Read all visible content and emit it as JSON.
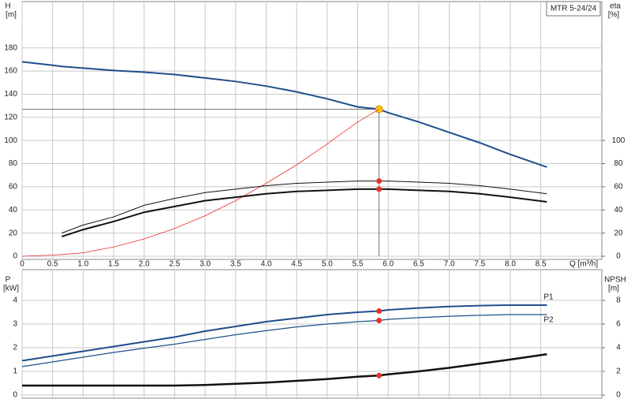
{
  "chart_data": [
    {
      "type": "line",
      "annotation": "MTR 5-24/24",
      "ylabel": "H",
      "yunit": "[m]",
      "y2label": "eta",
      "y2unit": "[%]",
      "xlabel": "Q [m³/h]",
      "xlim": [
        0,
        9.5
      ],
      "ylim": [
        0,
        220
      ],
      "y2lim": [
        0,
        220
      ],
      "xticks": [
        0,
        0.5,
        {
          "value": 1,
          "label": "1.0"
        },
        1.5,
        {
          "value": 2,
          "label": "2.0"
        },
        2.5,
        {
          "value": 3,
          "label": "3.0"
        },
        3.5,
        {
          "value": 4,
          "label": "4.0"
        },
        4.5,
        {
          "value": 5,
          "label": "5.0"
        },
        5.5,
        {
          "value": 6,
          "label": "6.0"
        },
        6.5,
        {
          "value": 7,
          "label": "7.0"
        },
        7.5,
        {
          "value": 8,
          "label": "8.0"
        },
        8.5
      ],
      "yticks": [
        0,
        20,
        40,
        60,
        80,
        100,
        120,
        140,
        160,
        180
      ],
      "y2ticks": [
        0,
        20,
        40,
        60,
        80,
        100
      ],
      "grid": true,
      "operating_x": 5.85,
      "duty_lines": true,
      "x": [
        0,
        0.5,
        0.65,
        1,
        1.5,
        2,
        2.5,
        3,
        3.5,
        4,
        4.5,
        5,
        5.5,
        5.85,
        6,
        6.5,
        7,
        7.5,
        8,
        8.6
      ],
      "series": [
        {
          "color": "#1f4e8c",
          "width": 2,
          "marker": "#f5c518",
          "values": [
            168,
            165,
            164,
            162.5,
            160.5,
            159,
            157,
            154,
            151,
            147,
            142,
            136,
            129,
            127,
            124,
            116,
            107,
            98,
            88,
            77
          ]
        },
        {
          "color": "#e8302a",
          "width": 0.8,
          "values": [
            0,
            1,
            1.5,
            3,
            8,
            15,
            24,
            35,
            48,
            63,
            79,
            97,
            116,
            127,
            null,
            null,
            null,
            null,
            null,
            null
          ]
        },
        {
          "color": "#111111",
          "width": 1,
          "axis": "y2",
          "marker": "#e8302a",
          "values": [
            null,
            null,
            20,
            27,
            34,
            44,
            50,
            55,
            58,
            61,
            63,
            64,
            65,
            65,
            65,
            64,
            63,
            61,
            58,
            54
          ]
        },
        {
          "color": "#111111",
          "width": 2,
          "axis": "y2",
          "marker": "#e8302a",
          "values": [
            null,
            null,
            17,
            23,
            30,
            38,
            43,
            48,
            51,
            54,
            56,
            57,
            58,
            58,
            58,
            57,
            56,
            54,
            51,
            47
          ]
        }
      ]
    },
    {
      "type": "line",
      "ylabel": "P",
      "yunit": "[kW]",
      "y2label": "NPSH",
      "y2unit": "[m]",
      "xlim": [
        0,
        9.5
      ],
      "ylim": [
        0,
        5.2
      ],
      "y2lim": [
        0,
        10.4
      ],
      "yticks": [
        0,
        1,
        2,
        3,
        4
      ],
      "y2ticks": [
        0,
        2,
        4,
        6,
        8
      ],
      "grid": true,
      "operating_x": 5.85,
      "x": [
        0,
        0.5,
        1,
        1.5,
        2,
        2.5,
        3,
        3.5,
        4,
        4.5,
        5,
        5.5,
        5.85,
        6,
        6.5,
        7,
        7.5,
        8,
        8.6
      ],
      "series": [
        {
          "name": "P1",
          "color": "#1f4e8c",
          "width": 2,
          "marker": "#e8302a",
          "values": [
            1.45,
            1.65,
            1.85,
            2.05,
            2.25,
            2.45,
            2.7,
            2.9,
            3.1,
            3.25,
            3.4,
            3.5,
            3.55,
            3.6,
            3.68,
            3.74,
            3.78,
            3.8,
            3.8
          ]
        },
        {
          "name": "P2",
          "color": "#1f4e8c",
          "width": 1.2,
          "marker": "#e8302a",
          "values": [
            1.2,
            1.4,
            1.6,
            1.8,
            1.98,
            2.15,
            2.35,
            2.55,
            2.72,
            2.88,
            3.0,
            3.1,
            3.15,
            3.2,
            3.27,
            3.33,
            3.37,
            3.4,
            3.4
          ]
        },
        {
          "color": "#111111",
          "width": 2.5,
          "axis": "y2",
          "marker": "#e8302a",
          "values": [
            0.8,
            0.8,
            0.8,
            0.8,
            0.8,
            0.8,
            0.85,
            0.95,
            1.05,
            1.2,
            1.35,
            1.55,
            1.65,
            1.75,
            2.0,
            2.3,
            2.65,
            3.0,
            3.45
          ]
        }
      ]
    }
  ]
}
